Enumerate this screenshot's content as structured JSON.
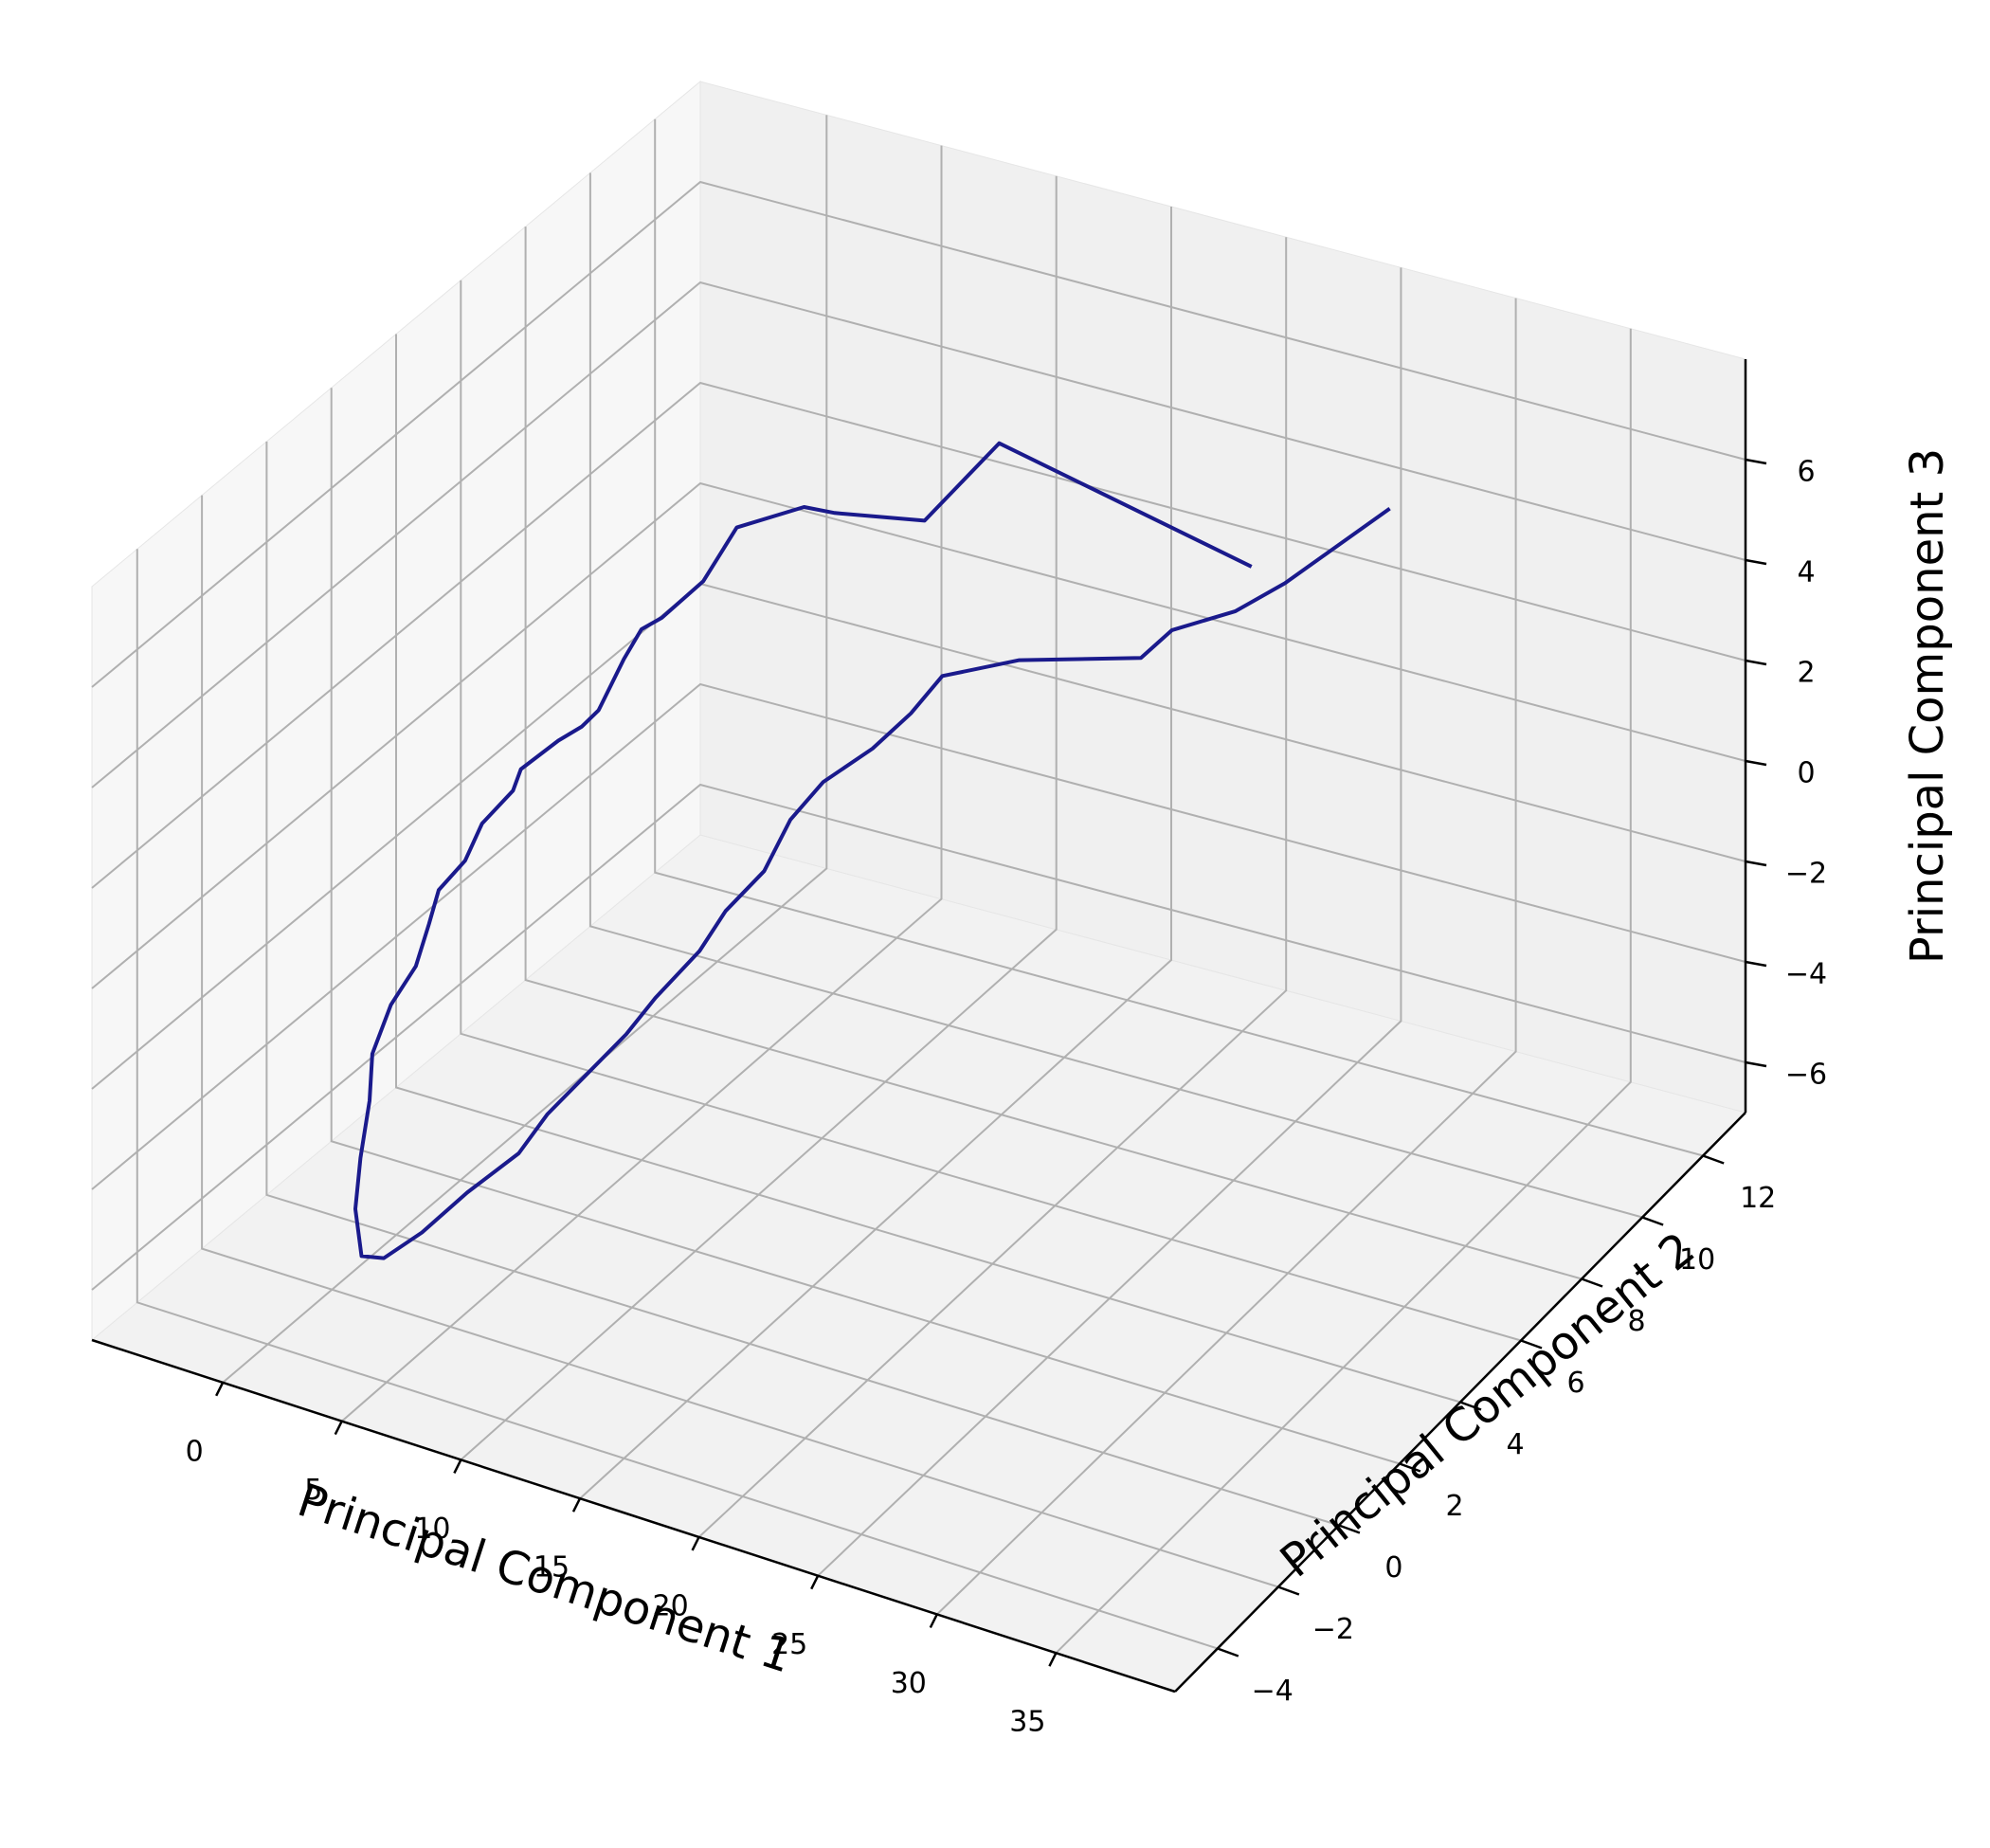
{
  "chart_data": {
    "type": "line",
    "projection": "3d",
    "xlabel": "Principal Component 1",
    "ylabel": "Principal Component 2",
    "zlabel": "Principal Component 3",
    "x_ticks": [
      "0",
      "5",
      "10",
      "15",
      "20",
      "25",
      "30",
      "35"
    ],
    "y_ticks": [
      "−4",
      "−2",
      "0",
      "2",
      "4",
      "6",
      "8",
      "10",
      "12"
    ],
    "z_ticks": [
      "−6",
      "−4",
      "−2",
      "0",
      "2",
      "4",
      "6"
    ],
    "grid": true,
    "series": [
      {
        "color": "#1a1a8c",
        "points_note": "trajectory traced through the 3D axes",
        "x": [
          20.4,
          11.5,
          10.6,
          7.0,
          5.4,
          3.6,
          3.4,
          2.3,
          1.7,
          1.5,
          1.1,
          0.8,
          0.2,
          -0.3,
          -0.5,
          -1.0,
          -0.9,
          -1.2,
          -0.8,
          -0.4,
          -0.5,
          -0.2,
          0.5,
          1.2,
          1.8,
          2.6,
          3.0,
          3.8,
          4.5,
          5.6,
          6.0,
          6.9,
          7.6,
          8.3,
          9.1,
          9.4,
          10.1,
          10.0,
          10.6,
          11.9,
          12.6,
          13.0,
          15.5,
          19.8,
          20.2,
          22.0,
          23.2,
          26.4
        ],
        "y": [
          12.0,
          10.5,
          8.8,
          8.6,
          8.8,
          8.0,
          7.1,
          6.6,
          6.4,
          6.0,
          5.5,
          5.2,
          4.9,
          4.1,
          4.0,
          3.4,
          2.8,
          2.2,
          1.6,
          0.9,
          0.2,
          -0.6,
          -1.2,
          -2.0,
          -2.6,
          -3.0,
          -2.6,
          -2.0,
          -1.1,
          -0.3,
          0.3,
          0.8,
          1.6,
          2.0,
          2.8,
          3.4,
          4.1,
          5.0,
          5.6,
          6.2,
          6.9,
          7.6,
          8.2,
          8.9,
          9.6,
          10.3,
          11.0,
          12.0
        ],
        "z": [
          2.3,
          4.5,
          3.8,
          3.6,
          3.4,
          3.2,
          2.6,
          2.0,
          1.8,
          1.4,
          0.6,
          0.4,
          0.2,
          0.0,
          -0.4,
          -0.8,
          -1.2,
          -1.5,
          -1.8,
          -2.2,
          -2.6,
          -3.1,
          -3.6,
          -4.2,
          -4.8,
          -5.4,
          -5.6,
          -5.3,
          -4.9,
          -4.4,
          -3.9,
          -3.3,
          -2.8,
          -2.2,
          -1.6,
          -1.1,
          -0.6,
          -0.1,
          0.4,
          0.9,
          1.3,
          1.7,
          2.0,
          2.2,
          2.4,
          2.6,
          2.9,
          4.2
        ]
      }
    ]
  }
}
